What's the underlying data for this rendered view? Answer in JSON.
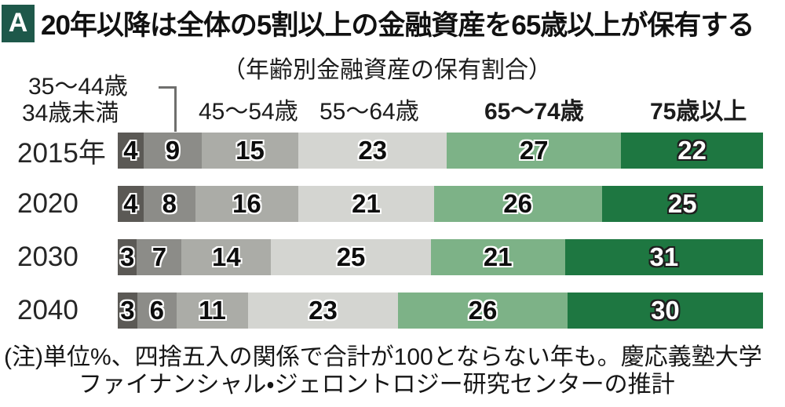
{
  "header": {
    "badge": "A",
    "title": "20年以降は全体の5割以上の金融資産を65歳以上が保有する"
  },
  "subtitle": "（年齢別金融資産の保有割合）",
  "legend": {
    "age_35_44": "35〜44歳",
    "age_under_34": "34歳未満",
    "age_45_54": "45〜54歳",
    "age_55_64": "55〜64歳",
    "age_65_74": "65〜74歳",
    "age_75_plus": "75歳以上"
  },
  "note": {
    "line1": "(注)単位%、四捨五入の関係で合計が100とならない年も。慶応義塾大学",
    "line2": "ファイナンシャル・ジェロントロジー研究センターの推計"
  },
  "colors": {
    "badge_background": "#1e584a",
    "connector_line": "#6f6f6d",
    "seg_under_34": "#5b5955",
    "seg_35_44": "#8c8c88",
    "seg_45_54": "#abaca7",
    "seg_55_64": "#d4d5d1",
    "seg_65_74": "#7db287",
    "seg_75_plus": "#1e7741"
  },
  "chart_data": {
    "type": "bar",
    "stacked": true,
    "orientation": "horizontal",
    "unit": "%",
    "title": "（年齢別金融資産の保有割合）",
    "categories": [
      "2015年",
      "2020",
      "2030",
      "2040"
    ],
    "series": [
      {
        "name": "34歳未満",
        "color": "#5b5955",
        "text_style": "dark",
        "textured": false,
        "values": [
          4,
          4,
          3,
          3
        ]
      },
      {
        "name": "35〜44歳",
        "color": "#8c8c88",
        "text_style": "dark",
        "textured": false,
        "values": [
          9,
          8,
          7,
          6
        ]
      },
      {
        "name": "45〜54歳",
        "color": "#abaca7",
        "text_style": "dark",
        "textured": false,
        "values": [
          15,
          16,
          14,
          11
        ]
      },
      {
        "name": "55〜64歳",
        "color": "#d4d5d1",
        "text_style": "dark",
        "textured": false,
        "values": [
          23,
          21,
          25,
          23
        ]
      },
      {
        "name": "65〜74歳",
        "color": "#7db287",
        "text_style": "dark",
        "textured": true,
        "values": [
          27,
          26,
          21,
          26
        ]
      },
      {
        "name": "75歳以上",
        "color": "#1e7741",
        "text_style": "light",
        "textured": true,
        "values": [
          22,
          25,
          31,
          30
        ]
      }
    ],
    "xlim": [
      0,
      100
    ],
    "legend_position": "top",
    "annotation": "合計が100とならない年もある（四捨五入）"
  }
}
